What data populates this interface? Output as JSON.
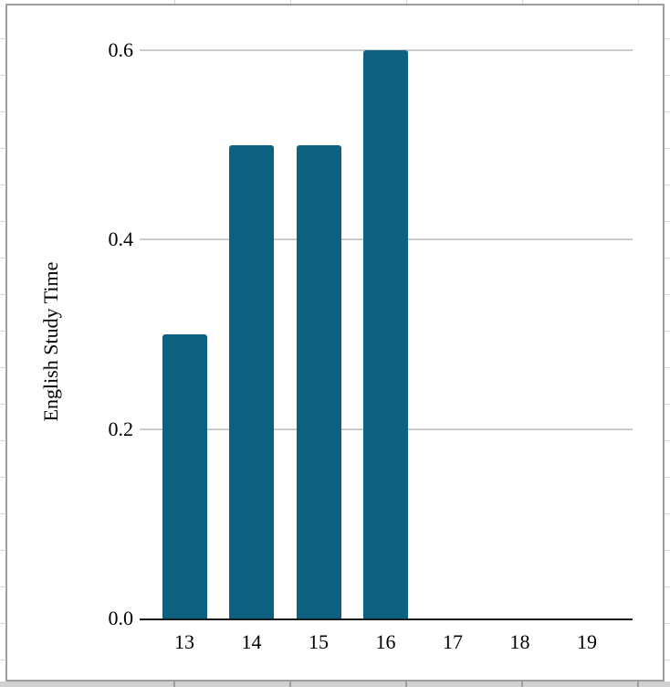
{
  "chart_data": {
    "type": "bar",
    "title": "",
    "ylabel": "English Study Time",
    "xlabel": "",
    "categories": [
      "13",
      "14",
      "15",
      "16",
      "17",
      "18",
      "19"
    ],
    "values": [
      0.3,
      0.5,
      0.5,
      0.6,
      0,
      0,
      0
    ],
    "ytick_labels": [
      "0.0",
      "0.2",
      "0.4",
      "0.6"
    ],
    "ytick_values": [
      0.0,
      0.2,
      0.4,
      0.6
    ],
    "ylim": [
      0,
      0.6
    ],
    "grid": "horizontal",
    "legend": "none"
  },
  "colors": {
    "bar": "#0e6081",
    "gridline": "#cbcbcb",
    "axis_line": "#1a1a1a",
    "panel_border": "#9e9e9e",
    "text": "#000000",
    "sheet_line": "#dadada",
    "sheet_bottom_bg": "#d0d0d0",
    "sheet_bottom_divider": "#9c9c9c"
  }
}
